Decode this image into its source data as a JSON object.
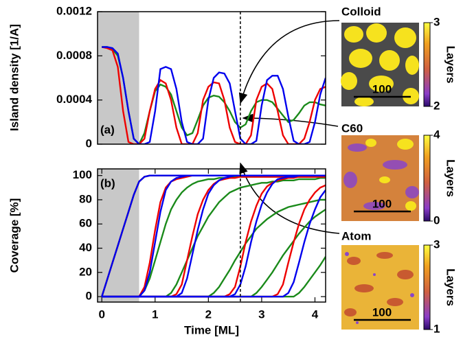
{
  "chart_data": [
    {
      "type": "line",
      "y_label": "Island density [1/A]",
      "panel_label": "(a)",
      "xlim": [
        -0.08,
        4.2
      ],
      "ylim": [
        0,
        0.0012
      ],
      "yticks": [
        0,
        0.0004,
        0.0008,
        0.0012
      ],
      "shade_to": 0.7,
      "marker_x": 2.6,
      "x": [
        0,
        0.1,
        0.2,
        0.3,
        0.4,
        0.5,
        0.6,
        0.7,
        0.8,
        0.9,
        1,
        1.1,
        1.2,
        1.3,
        1.4,
        1.5,
        1.6,
        1.7,
        1.8,
        1.9,
        2,
        2.1,
        2.2,
        2.3,
        2.4,
        2.5,
        2.6,
        2.7,
        2.8,
        2.9,
        3,
        3.1,
        3.2,
        3.3,
        3.4,
        3.5,
        3.6,
        3.7,
        3.8,
        3.9,
        4,
        4.1,
        4.2
      ],
      "series": [
        {
          "color": "#1a8a1a",
          "values": [
            0.00088,
            0.00088,
            0.00086,
            0.0008,
            0.0006,
            0.0003,
            5e-05,
            0,
            0.0001,
            0.0003,
            0.00048,
            0.00054,
            0.00052,
            0.00045,
            0.0003,
            0.00015,
            8e-05,
            0.0001,
            0.00022,
            0.00035,
            0.00042,
            0.00044,
            0.00043,
            0.00038,
            0.0003,
            0.0002,
            0.00015,
            0.00018,
            0.0003,
            0.00038,
            0.0004,
            0.0004,
            0.00038,
            0.00032,
            0.00026,
            0.0002,
            0.00022,
            0.00028,
            0.00035,
            0.00038,
            0.00038,
            0.00036,
            0.00035
          ]
        },
        {
          "color": "#ee0000",
          "values": [
            0.00088,
            0.00087,
            0.00085,
            0.0007,
            0.0003,
            2e-05,
            0,
            0,
            5e-05,
            0.0003,
            0.0005,
            0.00058,
            0.00055,
            0.0004,
            0.00015,
            0,
            0,
            0,
            0.0001,
            0.0004,
            0.00052,
            0.00056,
            0.00055,
            0.0004,
            0.00015,
            2e-05,
            0,
            0,
            8e-05,
            0.0004,
            0.00052,
            0.00055,
            0.0005,
            0.0003,
            8e-05,
            0,
            0,
            0,
            5e-05,
            0.0002,
            0.0004,
            0.0005,
            0.00052
          ]
        },
        {
          "color": "#0000ee",
          "values": [
            0.00088,
            0.00088,
            0.00087,
            0.00082,
            0.0006,
            0.0003,
            5e-05,
            0,
            0,
            2e-05,
            0.0003,
            0.00068,
            0.0007,
            0.00068,
            0.0005,
            0.0002,
            2e-05,
            0,
            0,
            5e-05,
            0.0004,
            0.0006,
            0.00065,
            0.00064,
            0.00055,
            0.0003,
            5e-05,
            0,
            0,
            3e-05,
            0.00035,
            0.00058,
            0.00062,
            0.00062,
            0.0005,
            0.00025,
            3e-05,
            0,
            0,
            2e-05,
            0.0002,
            0.00045,
            0.0006
          ]
        }
      ]
    },
    {
      "type": "line",
      "y_label": "Coverage [%]",
      "x_label": "Time [ML]",
      "panel_label": "(b)",
      "xlim": [
        -0.08,
        4.2
      ],
      "ylim": [
        -4.5,
        105.5
      ],
      "yticks": [
        0,
        20,
        40,
        60,
        80,
        100
      ],
      "xticks": [
        0,
        1,
        2,
        3,
        4
      ],
      "shade_to": 0.7,
      "marker_x": 2.6,
      "x": [
        0,
        0.1,
        0.2,
        0.3,
        0.4,
        0.5,
        0.6,
        0.7,
        0.8,
        0.9,
        1,
        1.1,
        1.2,
        1.3,
        1.4,
        1.5,
        1.6,
        1.7,
        1.8,
        1.9,
        2,
        2.1,
        2.2,
        2.3,
        2.4,
        2.5,
        2.6,
        2.7,
        2.8,
        2.9,
        3,
        3.1,
        3.2,
        3.3,
        3.4,
        3.5,
        3.6,
        3.7,
        3.8,
        3.9,
        4,
        4.1,
        4.2
      ],
      "series": [
        {
          "color": "#1a8a1a",
          "values": [
            0,
            14,
            28,
            42,
            56,
            70,
            84,
            95,
            99,
            100,
            100,
            100,
            100,
            100,
            100,
            100,
            100,
            100,
            100,
            100,
            100,
            100,
            100,
            100,
            100,
            100,
            100,
            100,
            100,
            100,
            100,
            100,
            100,
            100,
            100,
            100,
            100,
            100,
            100,
            100,
            100,
            100,
            100
          ]
        },
        {
          "color": "#1a8a1a",
          "values": [
            0,
            0,
            0,
            0,
            0,
            0,
            0,
            0,
            5,
            15,
            30,
            45,
            60,
            72,
            80,
            86,
            90,
            93,
            95,
            96,
            97,
            97,
            98,
            98,
            98,
            99,
            99,
            99,
            99,
            99,
            99,
            99,
            99,
            99,
            99,
            99,
            99,
            99,
            99,
            99,
            99,
            99,
            99
          ]
        },
        {
          "color": "#1a8a1a",
          "values": [
            0,
            0,
            0,
            0,
            0,
            0,
            0,
            0,
            0,
            0,
            0,
            0,
            0,
            3,
            10,
            20,
            30,
            40,
            50,
            58,
            66,
            72,
            78,
            82,
            86,
            88,
            90,
            91,
            92,
            93,
            94,
            94,
            95,
            95,
            96,
            96,
            96,
            97,
            97,
            97,
            97,
            98,
            98
          ]
        },
        {
          "color": "#1a8a1a",
          "values": [
            0,
            0,
            0,
            0,
            0,
            0,
            0,
            0,
            0,
            0,
            0,
            0,
            0,
            0,
            0,
            0,
            0,
            0,
            0,
            0,
            0,
            3,
            8,
            15,
            22,
            30,
            37,
            44,
            50,
            56,
            60,
            64,
            67,
            70,
            72,
            74,
            75,
            76,
            77,
            78,
            79,
            80,
            80
          ]
        },
        {
          "color": "#1a8a1a",
          "values": [
            0,
            0,
            0,
            0,
            0,
            0,
            0,
            0,
            0,
            0,
            0,
            0,
            0,
            0,
            0,
            0,
            0,
            0,
            0,
            0,
            0,
            0,
            0,
            0,
            0,
            0,
            0,
            0,
            0,
            3,
            8,
            14,
            20,
            27,
            34,
            40,
            46,
            52,
            57,
            62,
            66,
            69,
            72
          ]
        },
        {
          "color": "#1a8a1a",
          "values": [
            0,
            0,
            0,
            0,
            0,
            0,
            0,
            0,
            0,
            0,
            0,
            0,
            0,
            0,
            0,
            0,
            0,
            0,
            0,
            0,
            0,
            0,
            0,
            0,
            0,
            0,
            0,
            0,
            0,
            0,
            0,
            0,
            0,
            0,
            0,
            0,
            0,
            3,
            8,
            14,
            20,
            26,
            33
          ]
        },
        {
          "color": "#ee0000",
          "values": [
            0,
            14,
            28,
            42,
            56,
            70,
            84,
            95,
            99,
            100,
            100,
            100,
            100,
            100,
            100,
            100,
            100,
            100,
            100,
            100,
            100,
            100,
            100,
            100,
            100,
            100,
            100,
            100,
            100,
            100,
            100,
            100,
            100,
            100,
            100,
            100,
            100,
            100,
            100,
            100,
            100,
            100,
            100
          ]
        },
        {
          "color": "#ee0000",
          "values": [
            0,
            0,
            0,
            0,
            0,
            0,
            0,
            0,
            8,
            28,
            55,
            78,
            90,
            95,
            97,
            98,
            99,
            100,
            100,
            100,
            100,
            100,
            100,
            100,
            100,
            100,
            100,
            100,
            100,
            100,
            100,
            100,
            100,
            100,
            100,
            100,
            100,
            100,
            100,
            100,
            100,
            100,
            100
          ]
        },
        {
          "color": "#ee0000",
          "values": [
            0,
            0,
            0,
            0,
            0,
            0,
            0,
            0,
            0,
            0,
            0,
            0,
            0,
            0,
            2,
            10,
            30,
            50,
            68,
            80,
            88,
            93,
            96,
            97,
            98,
            98,
            99,
            99,
            99,
            99,
            99,
            99,
            99,
            99,
            99,
            99,
            99,
            99,
            99,
            99,
            99,
            99,
            99
          ]
        },
        {
          "color": "#ee0000",
          "values": [
            0,
            0,
            0,
            0,
            0,
            0,
            0,
            0,
            0,
            0,
            0,
            0,
            0,
            0,
            0,
            0,
            0,
            0,
            0,
            0,
            0,
            0,
            0,
            0,
            2,
            8,
            25,
            45,
            62,
            75,
            85,
            91,
            94,
            96,
            97,
            98,
            98,
            99,
            99,
            99,
            99,
            100,
            100
          ]
        },
        {
          "color": "#ee0000",
          "values": [
            0,
            0,
            0,
            0,
            0,
            0,
            0,
            0,
            0,
            0,
            0,
            0,
            0,
            0,
            0,
            0,
            0,
            0,
            0,
            0,
            0,
            0,
            0,
            0,
            0,
            0,
            0,
            0,
            0,
            0,
            0,
            0,
            0,
            2,
            10,
            28,
            45,
            60,
            72,
            80,
            86,
            90,
            92
          ]
        },
        {
          "color": "#0000ee",
          "values": [
            0,
            14,
            28,
            42,
            56,
            70,
            84,
            95,
            99,
            100,
            100,
            100,
            100,
            100,
            100,
            100,
            100,
            100,
            100,
            100,
            100,
            100,
            100,
            100,
            100,
            100,
            100,
            100,
            100,
            100,
            100,
            100,
            100,
            100,
            100,
            100,
            100,
            100,
            100,
            100,
            100,
            100,
            100
          ]
        },
        {
          "color": "#0000ee",
          "values": [
            0,
            0,
            0,
            0,
            0,
            0,
            0,
            0,
            5,
            20,
            45,
            70,
            88,
            95,
            98,
            99,
            100,
            100,
            100,
            100,
            100,
            100,
            100,
            100,
            100,
            100,
            100,
            100,
            100,
            100,
            100,
            100,
            100,
            100,
            100,
            100,
            100,
            100,
            100,
            100,
            100,
            100,
            100
          ]
        },
        {
          "color": "#0000ee",
          "values": [
            0,
            0,
            0,
            0,
            0,
            0,
            0,
            0,
            0,
            0,
            0,
            0,
            0,
            0,
            0,
            3,
            15,
            35,
            55,
            72,
            85,
            92,
            96,
            98,
            99,
            100,
            100,
            100,
            100,
            100,
            100,
            100,
            100,
            100,
            100,
            100,
            100,
            100,
            100,
            100,
            100,
            100,
            100
          ]
        },
        {
          "color": "#0000ee",
          "values": [
            0,
            0,
            0,
            0,
            0,
            0,
            0,
            0,
            0,
            0,
            0,
            0,
            0,
            0,
            0,
            0,
            0,
            0,
            0,
            0,
            0,
            0,
            0,
            0,
            0,
            2,
            10,
            25,
            45,
            62,
            76,
            86,
            93,
            97,
            98,
            99,
            99,
            100,
            100,
            100,
            100,
            100,
            100
          ]
        },
        {
          "color": "#0000ee",
          "values": [
            0,
            0,
            0,
            0,
            0,
            0,
            0,
            0,
            0,
            0,
            0,
            0,
            0,
            0,
            0,
            0,
            0,
            0,
            0,
            0,
            0,
            0,
            0,
            0,
            0,
            0,
            0,
            0,
            0,
            0,
            0,
            0,
            0,
            0,
            0,
            3,
            12,
            28,
            45,
            60,
            72,
            82,
            88
          ]
        }
      ]
    }
  ],
  "insets": [
    {
      "label": "Colloid",
      "scale": "100",
      "colorbar_label": "Layers",
      "colorbar_ticks": [
        2,
        3
      ]
    },
    {
      "label": "C60",
      "scale": "100",
      "colorbar_label": "Layers",
      "colorbar_ticks": [
        0,
        4
      ]
    },
    {
      "label": "Atom",
      "scale": "100",
      "colorbar_label": "Layers",
      "colorbar_ticks": [
        1,
        3
      ]
    }
  ]
}
